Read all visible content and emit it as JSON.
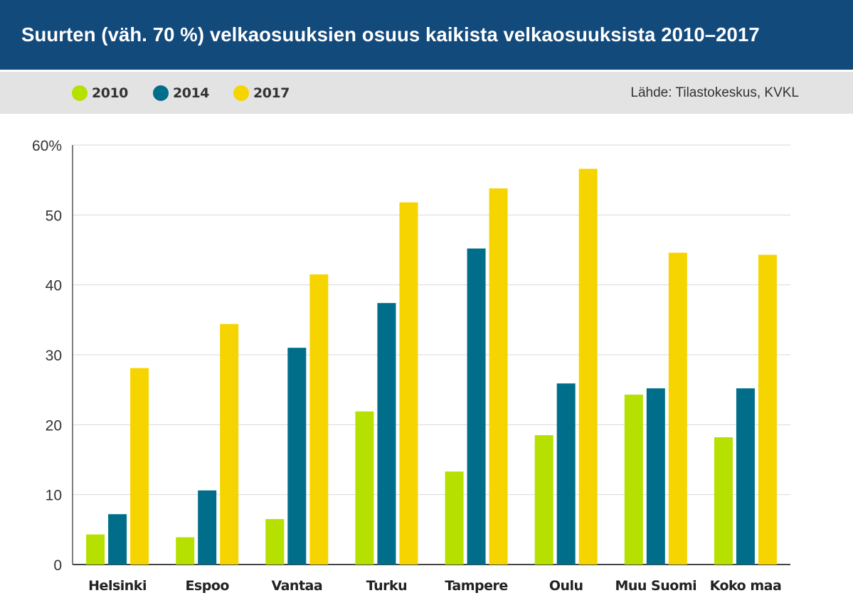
{
  "title": "Suurten (väh. 70 %) velkaosuuksien osuus kaikista velkaosuuksista 2010–2017",
  "source": "Lähde: Tilastokeskus, KVKL",
  "colors": {
    "header_bg": "#134a7c",
    "legend_bg": "#e3e3e3",
    "series_2010": "#b5e000",
    "series_2014": "#006e8a",
    "series_2017": "#f5d400"
  },
  "chart_data": {
    "type": "bar",
    "categories": [
      "Helsinki",
      "Espoo",
      "Vantaa",
      "Turku",
      "Tampere",
      "Oulu",
      "Muu Suomi",
      "Koko maa"
    ],
    "series": [
      {
        "name": "2010",
        "color": "#b5e000",
        "values": [
          4.3,
          3.9,
          6.5,
          21.9,
          13.3,
          18.5,
          24.3,
          18.2
        ]
      },
      {
        "name": "2014",
        "color": "#006e8a",
        "values": [
          7.2,
          10.6,
          31.0,
          37.4,
          45.2,
          25.9,
          25.2,
          25.2
        ]
      },
      {
        "name": "2017",
        "color": "#f5d400",
        "values": [
          28.1,
          34.4,
          41.5,
          51.8,
          53.8,
          56.6,
          44.6,
          44.3
        ]
      }
    ],
    "yticks": [
      "0",
      "10",
      "20",
      "30",
      "40",
      "50",
      "60%"
    ],
    "ylim": [
      0,
      60
    ],
    "grid": true,
    "legend": "top-left"
  }
}
